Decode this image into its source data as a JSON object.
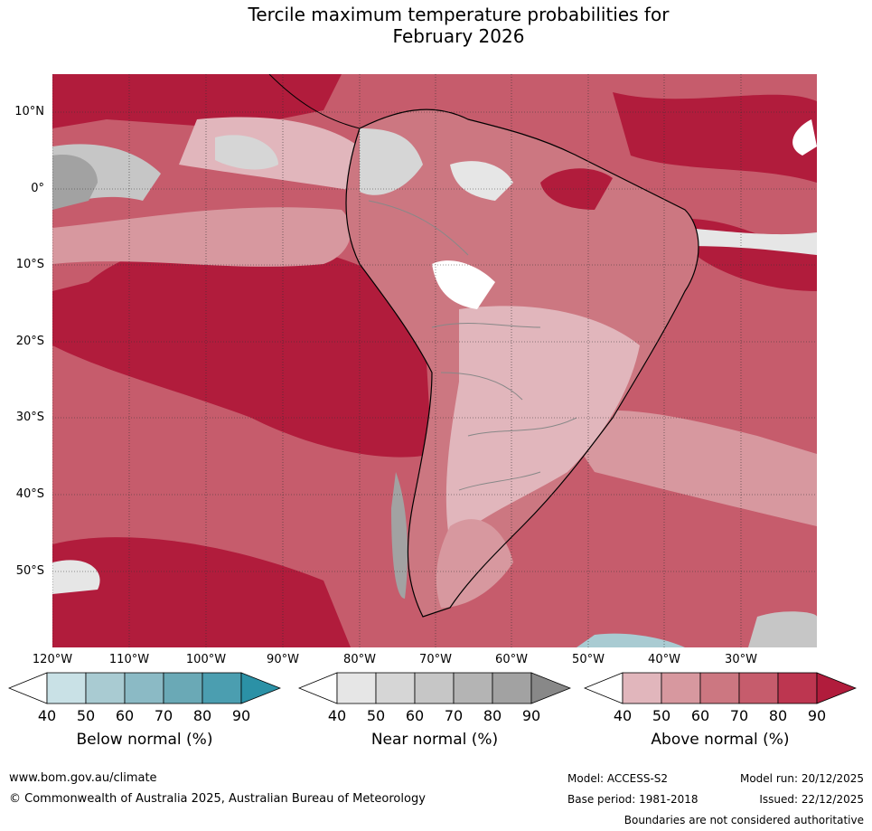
{
  "title_line1": "Tercile maximum temperature probabilities for",
  "title_line2": "February 2026",
  "lat_labels": [
    "10°N",
    "0°",
    "10°S",
    "20°S",
    "30°S",
    "40°S",
    "50°S"
  ],
  "lon_labels": [
    "120°W",
    "110°W",
    "100°W",
    "90°W",
    "80°W",
    "70°W",
    "60°W",
    "50°W",
    "40°W",
    "30°W"
  ],
  "colorbars": [
    {
      "title": "Below normal (%)",
      "ticks": [
        "40",
        "50",
        "60",
        "70",
        "80",
        "90"
      ],
      "colors": [
        "#ffffff",
        "#c9e1e6",
        "#a9cbd2",
        "#8bbac5",
        "#6aa9b6",
        "#4b9eb0",
        "#2b91a6"
      ]
    },
    {
      "title": "Near normal (%)",
      "ticks": [
        "40",
        "50",
        "60",
        "70",
        "80",
        "90"
      ],
      "colors": [
        "#ffffff",
        "#e6e6e6",
        "#d6d6d6",
        "#c6c6c6",
        "#b4b4b4",
        "#a2a2a2",
        "#888888"
      ]
    },
    {
      "title": "Above normal (%)",
      "ticks": [
        "40",
        "50",
        "60",
        "70",
        "80",
        "90"
      ],
      "colors": [
        "#ffffff",
        "#e1b6bc",
        "#d7989f",
        "#cc7781",
        "#c65c6c",
        "#bd3650",
        "#b11c3c"
      ]
    }
  ],
  "footer": {
    "url": "www.bom.gov.au/climate",
    "copyright": "© Commonwealth of Australia 2025, Australian Bureau of Meteorology",
    "model": "Model: ACCESS-S2",
    "base_period": "Base period: 1981-2018",
    "model_run": "Model run: 20/12/2025",
    "issued": "Issued: 22/12/2025",
    "disclaimer": "Boundaries are not considered authoritative"
  }
}
